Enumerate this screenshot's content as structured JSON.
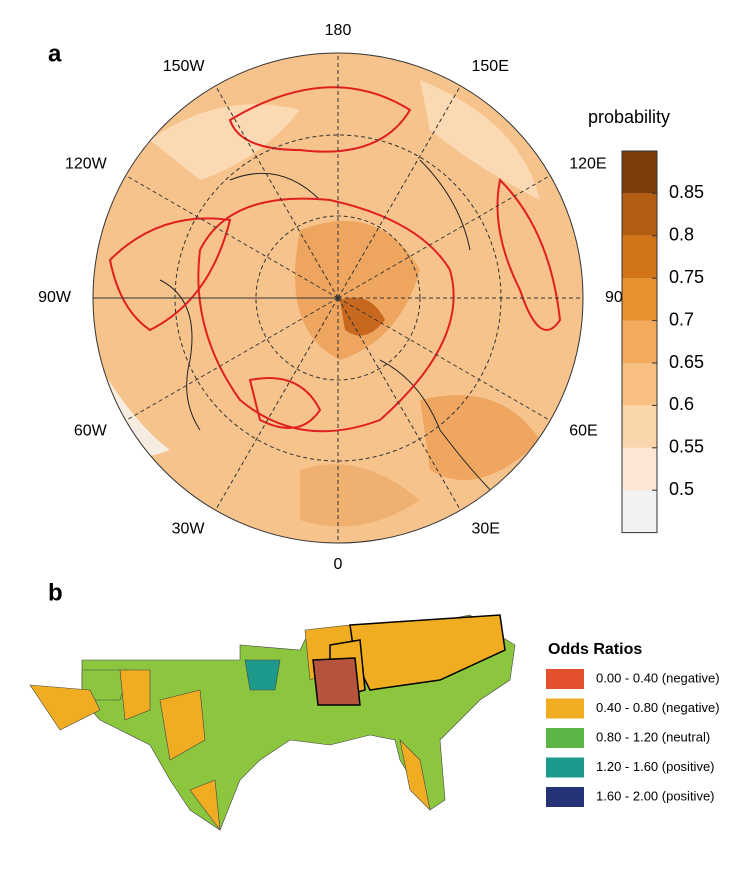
{
  "panel_a": {
    "label": "a",
    "lon_labels": [
      "180",
      "150E",
      "120E",
      "90E",
      "60E",
      "30E",
      "0",
      "30W",
      "60W",
      "90W",
      "120W",
      "150W"
    ],
    "colorbar": {
      "title": "probability",
      "ticks": [
        0.5,
        0.55,
        0.6,
        0.65,
        0.7,
        0.75,
        0.8,
        0.85
      ],
      "colors": [
        "#f2f2f2",
        "#fbe7d4",
        "#fbd5ab",
        "#f8c183",
        "#f3aa5c",
        "#e88f2e",
        "#d27418",
        "#b35d12",
        "#7e3c0a"
      ]
    }
  },
  "panel_b": {
    "label": "b",
    "legend": {
      "title": "Odds Ratios",
      "entries": [
        {
          "label": "0.00 - 0.40 (negative)",
          "color": "#e2512c"
        },
        {
          "label": "0.40 - 0.80 (negative)",
          "color": "#f0ad22"
        },
        {
          "label": "0.80 - 1.20 (neutral)",
          "color": "#5cb646"
        },
        {
          "label": "1.20 - 1.60 (positive)",
          "color": "#1d9a8c"
        },
        {
          "label": "1.60 - 2.00 (positive)",
          "color": "#263276"
        }
      ]
    }
  }
}
